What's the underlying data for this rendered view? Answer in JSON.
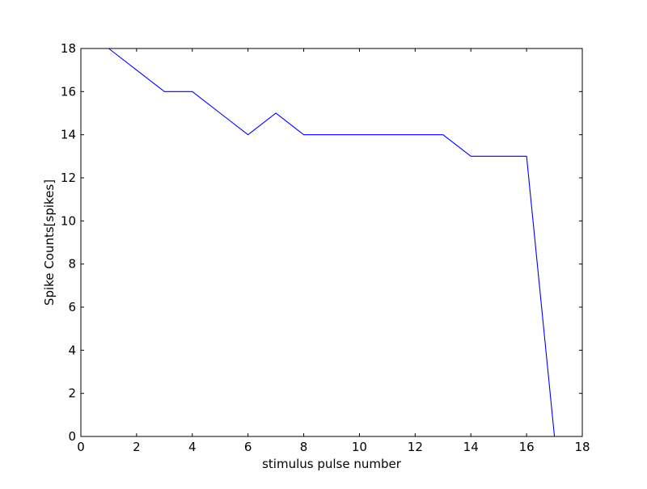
{
  "chart_data": {
    "type": "line",
    "title": "",
    "xlabel": "stimulus pulse number",
    "ylabel": "Spike Counts[spikes]",
    "xlim": [
      0,
      18
    ],
    "ylim": [
      0,
      18
    ],
    "x_ticks": [
      0,
      2,
      4,
      6,
      8,
      10,
      12,
      14,
      16,
      18
    ],
    "y_ticks": [
      0,
      2,
      4,
      6,
      8,
      10,
      12,
      14,
      16,
      18
    ],
    "grid": false,
    "series": [
      {
        "color": "#0000ff",
        "x": [
          1,
          2,
          3,
          4,
          5,
          6,
          7,
          8,
          9,
          10,
          11,
          12,
          13,
          14,
          15,
          16,
          17
        ],
        "y": [
          18,
          17,
          16,
          16,
          15,
          14,
          15,
          14,
          14,
          14,
          14,
          14,
          14,
          13,
          13,
          13,
          0
        ]
      }
    ]
  }
}
